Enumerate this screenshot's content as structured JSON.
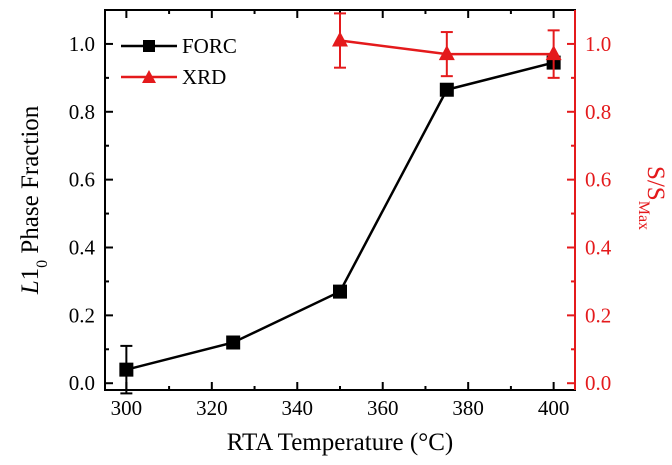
{
  "chart_data": {
    "type": "line",
    "x_axis": {
      "label": "RTA Temperature (°C)",
      "range": [
        295,
        405
      ],
      "ticks": [
        300,
        320,
        340,
        360,
        380,
        400
      ],
      "tick_labels": [
        "300",
        "320",
        "340",
        "360",
        "380",
        "400"
      ]
    },
    "y_axis_left": {
      "label_italic": "L",
      "label_main": "1",
      "label_sub": "0",
      "label_rest": " Phase Fraction",
      "range": [
        -0.02,
        1.1
      ],
      "ticks": [
        0.0,
        0.2,
        0.4,
        0.6,
        0.8,
        1.0
      ],
      "tick_labels": [
        "0.0",
        "0.2",
        "0.4",
        "0.6",
        "0.8",
        "1.0"
      ],
      "color": "#000000"
    },
    "y_axis_right": {
      "label_main": "S/S",
      "label_sub": "Max",
      "range": [
        -0.02,
        1.1
      ],
      "ticks": [
        0.0,
        0.2,
        0.4,
        0.6,
        0.8,
        1.0
      ],
      "tick_labels": [
        "0.0",
        "0.2",
        "0.4",
        "0.6",
        "0.8",
        "1.0"
      ],
      "color": "#e41a1c"
    },
    "series": [
      {
        "name": "FORC",
        "axis": "left",
        "color": "#000000",
        "marker": "square",
        "x": [
          300,
          325,
          350,
          375,
          400
        ],
        "y": [
          0.04,
          0.12,
          0.27,
          0.865,
          0.945
        ],
        "error": [
          0.07,
          0,
          0,
          0,
          0
        ]
      },
      {
        "name": "XRD",
        "axis": "right",
        "color": "#e41a1c",
        "marker": "triangle",
        "x": [
          350,
          375,
          400
        ],
        "y": [
          1.01,
          0.97,
          0.97
        ],
        "error": [
          0.08,
          0.065,
          0.07
        ]
      }
    ],
    "legend": {
      "position": "top-left"
    },
    "grid": false
  }
}
